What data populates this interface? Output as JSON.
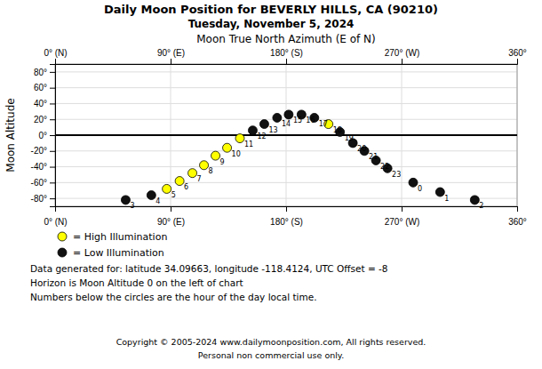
{
  "chart_data": {
    "type": "scatter",
    "title": "Daily Moon Position for BEVERLY HILLS, CA (90210)",
    "subtitle": "Tuesday, November 5, 2024",
    "x_label": "Moon True North Azimuth (E of N)",
    "y_label": "Moon Altitude",
    "xlim": [
      0,
      360
    ],
    "ylim": [
      -90,
      90
    ],
    "xticks": [
      {
        "value": 0,
        "label": "0° (N)"
      },
      {
        "value": 90,
        "label": "90° (E)"
      },
      {
        "value": 180,
        "label": "180° (S)"
      },
      {
        "value": 270,
        "label": "270° (W)"
      },
      {
        "value": 360,
        "label": "360°"
      }
    ],
    "yticks": [
      {
        "value": -80,
        "label": "-80°"
      },
      {
        "value": -60,
        "label": "-60°"
      },
      {
        "value": -40,
        "label": "-40°"
      },
      {
        "value": -20,
        "label": "-20°"
      },
      {
        "value": 0,
        "label": "0°"
      },
      {
        "value": 20,
        "label": "20°"
      },
      {
        "value": 40,
        "label": "40°"
      },
      {
        "value": 60,
        "label": "60°"
      },
      {
        "value": 80,
        "label": "80°"
      }
    ],
    "grid": true,
    "legend": "bottom",
    "hlines": [
      {
        "value": 0
      }
    ],
    "series": [
      {
        "name": "= High Illumination",
        "color": "#FFFF00",
        "x": [
          87,
          97,
          107,
          116,
          125,
          134,
          144,
          213
        ],
        "values": [
          -68,
          -58,
          -48,
          -38,
          -26,
          -16,
          -4,
          14
        ],
        "hours": [
          5,
          6,
          7,
          8,
          9,
          10,
          11,
          18
        ]
      },
      {
        "name": "= Low Illumination",
        "color": "#111111",
        "x": [
          55,
          75,
          154,
          163,
          173,
          182,
          192,
          202,
          222,
          232,
          241,
          250,
          259,
          279,
          300,
          327
        ],
        "values": [
          -82,
          -76,
          6,
          14,
          22,
          26,
          26,
          22,
          4,
          -10,
          -20,
          -32,
          -42,
          -60,
          -72,
          -82
        ],
        "hours": [
          3,
          4,
          12,
          13,
          14,
          15,
          16,
          17,
          19,
          20,
          21,
          22,
          23,
          0,
          1,
          2
        ]
      }
    ],
    "footer_lines": [
      "Data generated for: latitude 34.09663, longitude -118.4124, UTC Offset = -8",
      "Horizon is Moon Altitude 0 on the left of chart",
      "Numbers below the circles are the hour of the day local time."
    ],
    "credits": [
      "Copyright © 2005-2024 www.dailymoonposition.com, All rights reserved.",
      "Personal non commercial use only."
    ]
  }
}
